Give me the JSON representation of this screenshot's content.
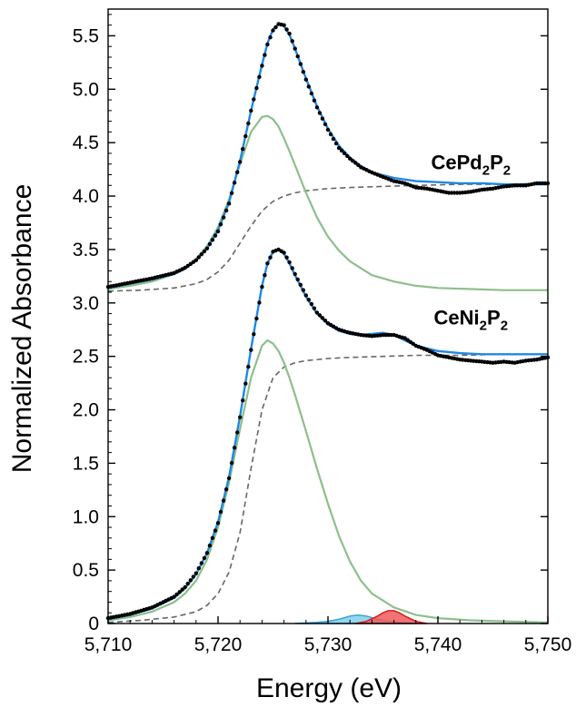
{
  "chart_data": {
    "type": "line",
    "xlabel": "Energy (eV)",
    "ylabel": "Normalized Absorbance",
    "xlim": [
      5710,
      5750
    ],
    "ylim": [
      0,
      5.75
    ],
    "x_ticks": [
      {
        "value": 5710,
        "label": "5,710"
      },
      {
        "value": 5720,
        "label": "5,720"
      },
      {
        "value": 5730,
        "label": "5,730"
      },
      {
        "value": 5740,
        "label": "5,740"
      },
      {
        "value": 5750,
        "label": "5,750"
      }
    ],
    "y_ticks": [
      {
        "value": 0,
        "label": "0"
      },
      {
        "value": 0.5,
        "label": "0.5"
      },
      {
        "value": 1.0,
        "label": "1.0"
      },
      {
        "value": 1.5,
        "label": "1.5"
      },
      {
        "value": 2.0,
        "label": "2.0"
      },
      {
        "value": 2.5,
        "label": "2.5"
      },
      {
        "value": 3.0,
        "label": "3.0"
      },
      {
        "value": 3.5,
        "label": "3.5"
      },
      {
        "value": 4.0,
        "label": "4.0"
      },
      {
        "value": 4.5,
        "label": "4.5"
      },
      {
        "value": 5.0,
        "label": "5.0"
      },
      {
        "value": 5.5,
        "label": "5.5"
      }
    ],
    "annotations": [
      {
        "base": "CePd",
        "sub1": "2",
        "mid": "P",
        "sub2": "2",
        "x": 5743,
        "y": 4.25
      },
      {
        "base": "CeNi",
        "sub1": "2",
        "mid": "P",
        "sub2": "2",
        "x": 5743,
        "y": 2.8
      }
    ],
    "colors": {
      "data": "#000000",
      "fit": "#1E88E5",
      "peak": "#8DBF8B",
      "step": "#666666",
      "peak_blue_fill": "#7FD0EA",
      "peak_blue_line": "#3AA0D8",
      "peak_red_fill": "#EE5A5A",
      "peak_red_line": "#D62020"
    },
    "series": [
      {
        "role": "data",
        "x": [
          5710,
          5712,
          5714,
          5716,
          5717,
          5718,
          5719,
          5720,
          5721,
          5722,
          5723,
          5724,
          5724.5,
          5725,
          5725.5,
          5726,
          5726.5,
          5727,
          5728,
          5729,
          5730,
          5731,
          5732,
          5733,
          5734,
          5735,
          5736,
          5737,
          5738,
          5739,
          5740,
          5741,
          5742,
          5743,
          5744,
          5745,
          5746,
          5747,
          5748,
          5749,
          5750
        ],
        "y": [
          3.15,
          3.19,
          3.23,
          3.28,
          3.33,
          3.4,
          3.51,
          3.67,
          3.93,
          4.32,
          4.8,
          5.22,
          5.42,
          5.55,
          5.61,
          5.6,
          5.52,
          5.38,
          5.09,
          4.83,
          4.62,
          4.45,
          4.35,
          4.27,
          4.22,
          4.18,
          4.14,
          4.12,
          4.08,
          4.07,
          4.05,
          4.03,
          4.03,
          4.04,
          4.06,
          4.07,
          4.09,
          4.1,
          4.1,
          4.12,
          4.12
        ]
      },
      {
        "role": "data",
        "x": [
          5710,
          5712,
          5714,
          5716,
          5717,
          5718,
          5719,
          5720,
          5721,
          5722,
          5723,
          5724,
          5724.5,
          5725,
          5725.5,
          5726,
          5726.5,
          5727,
          5728,
          5729,
          5730,
          5731,
          5732,
          5733,
          5734,
          5735,
          5736,
          5737,
          5738,
          5739,
          5740,
          5741,
          5742,
          5743,
          5744,
          5745,
          5746,
          5747,
          5748,
          5749,
          5750
        ],
        "y": [
          0.05,
          0.09,
          0.15,
          0.25,
          0.34,
          0.47,
          0.66,
          0.94,
          1.36,
          1.93,
          2.56,
          3.15,
          3.37,
          3.48,
          3.5,
          3.47,
          3.38,
          3.27,
          3.07,
          2.91,
          2.81,
          2.75,
          2.72,
          2.7,
          2.69,
          2.7,
          2.7,
          2.67,
          2.6,
          2.56,
          2.51,
          2.49,
          2.47,
          2.46,
          2.45,
          2.44,
          2.45,
          2.44,
          2.46,
          2.47,
          2.49
        ]
      },
      {
        "role": "fit",
        "x": [
          5710,
          5712,
          5714,
          5716,
          5717,
          5718,
          5719,
          5720,
          5721,
          5722,
          5723,
          5724,
          5724.5,
          5725,
          5725.5,
          5726,
          5726.5,
          5727,
          5728,
          5729,
          5730,
          5731,
          5732,
          5733,
          5734,
          5736,
          5738,
          5740,
          5742,
          5744,
          5746,
          5748,
          5750
        ],
        "y": [
          3.14,
          3.18,
          3.22,
          3.27,
          3.32,
          3.4,
          3.51,
          3.68,
          3.94,
          4.33,
          4.8,
          5.23,
          5.43,
          5.56,
          5.61,
          5.59,
          5.51,
          5.38,
          5.1,
          4.84,
          4.63,
          4.47,
          4.36,
          4.28,
          4.22,
          4.17,
          4.14,
          4.13,
          4.12,
          4.12,
          4.11,
          4.11,
          4.11
        ]
      },
      {
        "role": "fit",
        "x": [
          5710,
          5712,
          5714,
          5716,
          5717,
          5718,
          5719,
          5720,
          5721,
          5722,
          5723,
          5724,
          5724.5,
          5725,
          5725.5,
          5726,
          5726.5,
          5727,
          5728,
          5729,
          5730,
          5731,
          5732,
          5733,
          5734,
          5735,
          5736,
          5737,
          5738,
          5740,
          5742,
          5744,
          5746,
          5748,
          5750
        ],
        "y": [
          0.04,
          0.08,
          0.14,
          0.24,
          0.33,
          0.46,
          0.66,
          0.95,
          1.37,
          1.94,
          2.57,
          3.16,
          3.37,
          3.48,
          3.5,
          3.46,
          3.37,
          3.26,
          3.06,
          2.9,
          2.8,
          2.74,
          2.71,
          2.7,
          2.71,
          2.72,
          2.7,
          2.65,
          2.6,
          2.55,
          2.53,
          2.52,
          2.52,
          2.52,
          2.52
        ]
      },
      {
        "role": "peak",
        "x": [
          5710,
          5712,
          5714,
          5716,
          5717,
          5718,
          5719,
          5720,
          5721,
          5722,
          5723,
          5724,
          5724.5,
          5725,
          5725.5,
          5726,
          5726.5,
          5727,
          5728,
          5729,
          5730,
          5731,
          5732,
          5734,
          5736,
          5738,
          5740,
          5743,
          5746,
          5750
        ],
        "y": [
          3.13,
          3.16,
          3.2,
          3.27,
          3.32,
          3.41,
          3.53,
          3.71,
          3.97,
          4.3,
          4.6,
          4.74,
          4.75,
          4.72,
          4.65,
          4.54,
          4.42,
          4.29,
          4.03,
          3.8,
          3.62,
          3.49,
          3.39,
          3.26,
          3.2,
          3.16,
          3.14,
          3.13,
          3.12,
          3.12
        ]
      },
      {
        "role": "peak",
        "x": [
          5710,
          5712,
          5714,
          5716,
          5717,
          5718,
          5719,
          5720,
          5721,
          5722,
          5723,
          5724,
          5724.5,
          5725,
          5725.5,
          5726,
          5726.5,
          5727,
          5728,
          5729,
          5730,
          5731,
          5732,
          5733,
          5734,
          5736,
          5738,
          5740,
          5743,
          5746,
          5750
        ],
        "y": [
          0.03,
          0.06,
          0.11,
          0.2,
          0.28,
          0.4,
          0.6,
          0.9,
          1.32,
          1.82,
          2.3,
          2.6,
          2.65,
          2.62,
          2.55,
          2.44,
          2.3,
          2.14,
          1.8,
          1.45,
          1.12,
          0.82,
          0.58,
          0.4,
          0.28,
          0.15,
          0.08,
          0.05,
          0.03,
          0.02,
          0.01
        ]
      },
      {
        "role": "step",
        "x": [
          5710,
          5713,
          5716,
          5718,
          5719,
          5720,
          5721,
          5722,
          5723,
          5724,
          5725,
          5726,
          5727,
          5728,
          5730,
          5732,
          5735,
          5738,
          5742,
          5746,
          5750
        ],
        "y": [
          3.11,
          3.12,
          3.14,
          3.18,
          3.22,
          3.29,
          3.4,
          3.56,
          3.72,
          3.86,
          3.95,
          4.0,
          4.03,
          4.05,
          4.07,
          4.08,
          4.09,
          4.1,
          4.11,
          4.11,
          4.12
        ]
      },
      {
        "role": "step",
        "x": [
          5710,
          5713,
          5716,
          5718,
          5719,
          5720,
          5721,
          5722,
          5723,
          5724,
          5725,
          5726,
          5727,
          5728,
          5730,
          5732,
          5735,
          5738,
          5742,
          5746,
          5750
        ],
        "y": [
          0.01,
          0.03,
          0.06,
          0.11,
          0.17,
          0.28,
          0.48,
          0.85,
          1.45,
          2.0,
          2.3,
          2.4,
          2.44,
          2.46,
          2.48,
          2.49,
          2.5,
          2.51,
          2.51,
          2.52,
          2.52
        ]
      },
      {
        "role": "peak-fill-blue",
        "x": [
          5727,
          5729,
          5730,
          5731,
          5732,
          5732.7,
          5733.5,
          5734.5,
          5735.5,
          5736.5,
          5738
        ],
        "y": [
          0.0,
          0.01,
          0.02,
          0.04,
          0.07,
          0.08,
          0.07,
          0.04,
          0.02,
          0.01,
          0.0
        ]
      },
      {
        "role": "peak-fill-red",
        "x": [
          5732.5,
          5733.5,
          5734.5,
          5735,
          5735.5,
          5736,
          5736.5,
          5737,
          5738,
          5739
        ],
        "y": [
          0.0,
          0.02,
          0.07,
          0.1,
          0.12,
          0.12,
          0.1,
          0.07,
          0.02,
          0.0
        ]
      }
    ]
  }
}
